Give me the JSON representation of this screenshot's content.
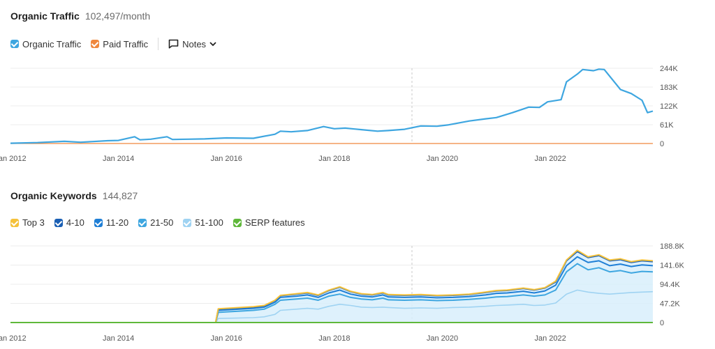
{
  "traffic": {
    "title": "Organic Traffic",
    "metric": "102,497/month",
    "legend": [
      {
        "label": "Organic Traffic",
        "color": "#3ea6e0"
      },
      {
        "label": "Paid Traffic",
        "color": "#f0883e"
      }
    ],
    "notes_label": "Notes"
  },
  "keywords": {
    "title": "Organic Keywords",
    "metric": "144,827",
    "legend": [
      {
        "label": "Top 3",
        "color": "#f5c23b"
      },
      {
        "label": "4-10",
        "color": "#1a5fb4"
      },
      {
        "label": "11-20",
        "color": "#1f7fd6"
      },
      {
        "label": "21-50",
        "color": "#3ea6e0"
      },
      {
        "label": "51-100",
        "color": "#9fd3f2"
      },
      {
        "label": "SERP features",
        "color": "#5fb83a"
      }
    ]
  },
  "chart_data": [
    {
      "type": "line",
      "title": "Organic Traffic",
      "x_ticks": [
        "Jan 2012",
        "Jan 2014",
        "Jan 2016",
        "Jan 2018",
        "Jan 2020",
        "Jan 2022"
      ],
      "y_ticks": [
        "0",
        "61K",
        "122K",
        "183K",
        "244K"
      ],
      "ylim": [
        0,
        244000
      ],
      "xlim": [
        2012.0,
        2023.9
      ],
      "series": [
        {
          "name": "Organic Traffic",
          "color": "#3ea6e0",
          "x": [
            2012.0,
            2012.5,
            2013.0,
            2013.3,
            2013.5,
            2013.8,
            2014.0,
            2014.3,
            2014.4,
            2014.6,
            2014.9,
            2015.0,
            2015.3,
            2015.6,
            2016.0,
            2016.5,
            2016.9,
            2017.0,
            2017.2,
            2017.5,
            2017.8,
            2018.0,
            2018.2,
            2018.5,
            2018.8,
            2019.0,
            2019.3,
            2019.6,
            2019.9,
            2020.1,
            2020.5,
            2020.8,
            2021.0,
            2021.3,
            2021.6,
            2021.8,
            2021.95,
            2022.2,
            2022.3,
            2022.5,
            2022.6,
            2022.8,
            2022.9,
            2023.0,
            2023.3,
            2023.5,
            2023.7,
            2023.8,
            2023.9
          ],
          "values": [
            1000,
            3000,
            7000,
            4000,
            6000,
            9000,
            10000,
            22000,
            12000,
            14000,
            22000,
            13000,
            14000,
            15000,
            18000,
            17000,
            30000,
            40000,
            38000,
            42000,
            55000,
            48000,
            50000,
            45000,
            40000,
            42000,
            46000,
            57000,
            56000,
            60000,
            73000,
            80000,
            84000,
            100000,
            118000,
            117000,
            135000,
            142000,
            200000,
            225000,
            240000,
            236000,
            241000,
            240000,
            175000,
            162000,
            140000,
            100000,
            105000
          ]
        },
        {
          "name": "Paid Traffic",
          "color": "#f0883e",
          "x": [
            2012.0,
            2023.9
          ],
          "values": [
            0,
            0
          ]
        }
      ]
    },
    {
      "type": "area",
      "title": "Organic Keywords",
      "x_ticks": [
        "Jan 2012",
        "Jan 2014",
        "Jan 2016",
        "Jan 2018",
        "Jan 2020",
        "Jan 2022"
      ],
      "y_ticks": [
        "0",
        "47.2K",
        "94.4K",
        "141.6K",
        "188.8K"
      ],
      "ylim": [
        0,
        188800
      ],
      "xlim": [
        2012.0,
        2023.9
      ],
      "x": [
        2012.0,
        2015.8,
        2015.85,
        2016.5,
        2016.7,
        2016.9,
        2017.0,
        2017.3,
        2017.5,
        2017.7,
        2017.9,
        2018.1,
        2018.3,
        2018.5,
        2018.7,
        2018.9,
        2019.0,
        2019.3,
        2019.6,
        2019.9,
        2020.2,
        2020.5,
        2020.8,
        2021.0,
        2021.2,
        2021.5,
        2021.7,
        2021.9,
        2022.1,
        2022.3,
        2022.5,
        2022.7,
        2022.9,
        2023.1,
        2023.3,
        2023.5,
        2023.7,
        2023.9
      ],
      "series": [
        {
          "name": "51-100",
          "color": "#9fd3f2",
          "values": [
            0,
            0,
            10000,
            12000,
            14000,
            20000,
            30000,
            33000,
            35000,
            33000,
            40000,
            45000,
            42000,
            38000,
            37000,
            38000,
            37000,
            35000,
            36000,
            35000,
            37000,
            38000,
            40000,
            42000,
            43000,
            45000,
            42000,
            43000,
            48000,
            70000,
            80000,
            75000,
            72000,
            70000,
            72000,
            74000,
            75000,
            76000
          ]
        },
        {
          "name": "21-50",
          "color": "#3ea6e0",
          "values": [
            0,
            0,
            25000,
            30000,
            33000,
            45000,
            55000,
            58000,
            60000,
            55000,
            65000,
            70000,
            62000,
            58000,
            56000,
            60000,
            56000,
            55000,
            56000,
            54000,
            55000,
            57000,
            60000,
            63000,
            64000,
            68000,
            65000,
            68000,
            80000,
            125000,
            145000,
            130000,
            135000,
            125000,
            128000,
            122000,
            126000,
            125000
          ]
        },
        {
          "name": "11-20",
          "color": "#1f7fd6",
          "values": [
            0,
            0,
            30000,
            35000,
            38000,
            50000,
            62000,
            65000,
            68000,
            62000,
            73000,
            80000,
            70000,
            65000,
            63000,
            68000,
            63000,
            62000,
            63000,
            61000,
            62000,
            64000,
            68000,
            72000,
            73000,
            77000,
            73000,
            78000,
            92000,
            140000,
            162000,
            148000,
            152000,
            140000,
            144000,
            138000,
            142000,
            140000
          ]
        },
        {
          "name": "4-10",
          "color": "#1a5fb4",
          "values": [
            0,
            0,
            33000,
            38000,
            41000,
            54000,
            66000,
            70000,
            73000,
            67000,
            79000,
            87000,
            76000,
            70000,
            68000,
            73000,
            68000,
            67000,
            68000,
            66000,
            67000,
            69000,
            74000,
            78000,
            79000,
            84000,
            80000,
            85000,
            100000,
            152000,
            175000,
            160000,
            165000,
            152000,
            155000,
            148000,
            152000,
            150000
          ]
        },
        {
          "name": "Top 3",
          "color": "#f5c23b",
          "values": [
            0,
            0,
            34000,
            39000,
            42000,
            55000,
            67000,
            71000,
            74000,
            68000,
            80000,
            88000,
            77000,
            71000,
            69000,
            74000,
            69000,
            68000,
            69000,
            67000,
            68000,
            70000,
            75000,
            79000,
            80000,
            85000,
            81000,
            86000,
            102000,
            154000,
            178000,
            162000,
            167000,
            154000,
            157000,
            150000,
            154000,
            152000
          ]
        }
      ]
    }
  ]
}
